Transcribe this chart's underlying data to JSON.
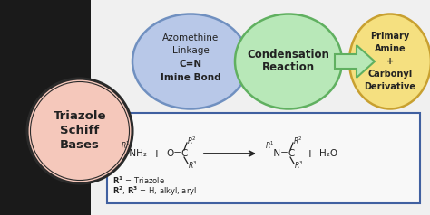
{
  "bg_left_color": "#1a1a1a",
  "bg_right_color": "#f0f0f0",
  "circle_main_color": "#f5c8bb",
  "circle_main_edge": "#2a2a2a",
  "circle_main_text": [
    "Triazole",
    "Schiff",
    "Bases"
  ],
  "ellipse1_color": "#b8c8e8",
  "ellipse1_edge": "#7090c0",
  "ellipse1_text": [
    "Azomethine",
    "Linkage",
    "C=N",
    "Imine Bond"
  ],
  "ellipse2_color": "#b8e8b8",
  "ellipse2_edge": "#60b060",
  "ellipse2_text": [
    "Condensation",
    "Reaction"
  ],
  "ellipse3_color": "#f5e080",
  "ellipse3_edge": "#c8a030",
  "ellipse3_text": [
    "Primary",
    "Amine",
    "+",
    "Carbonyl",
    "Derivative"
  ],
  "box_edge": "#4060a0",
  "box_bg": "#f8f8f8",
  "note1": "R¹ = Triazole",
  "note2": "R², R³ = H, alkyl, aryl",
  "text_color": "#222222"
}
